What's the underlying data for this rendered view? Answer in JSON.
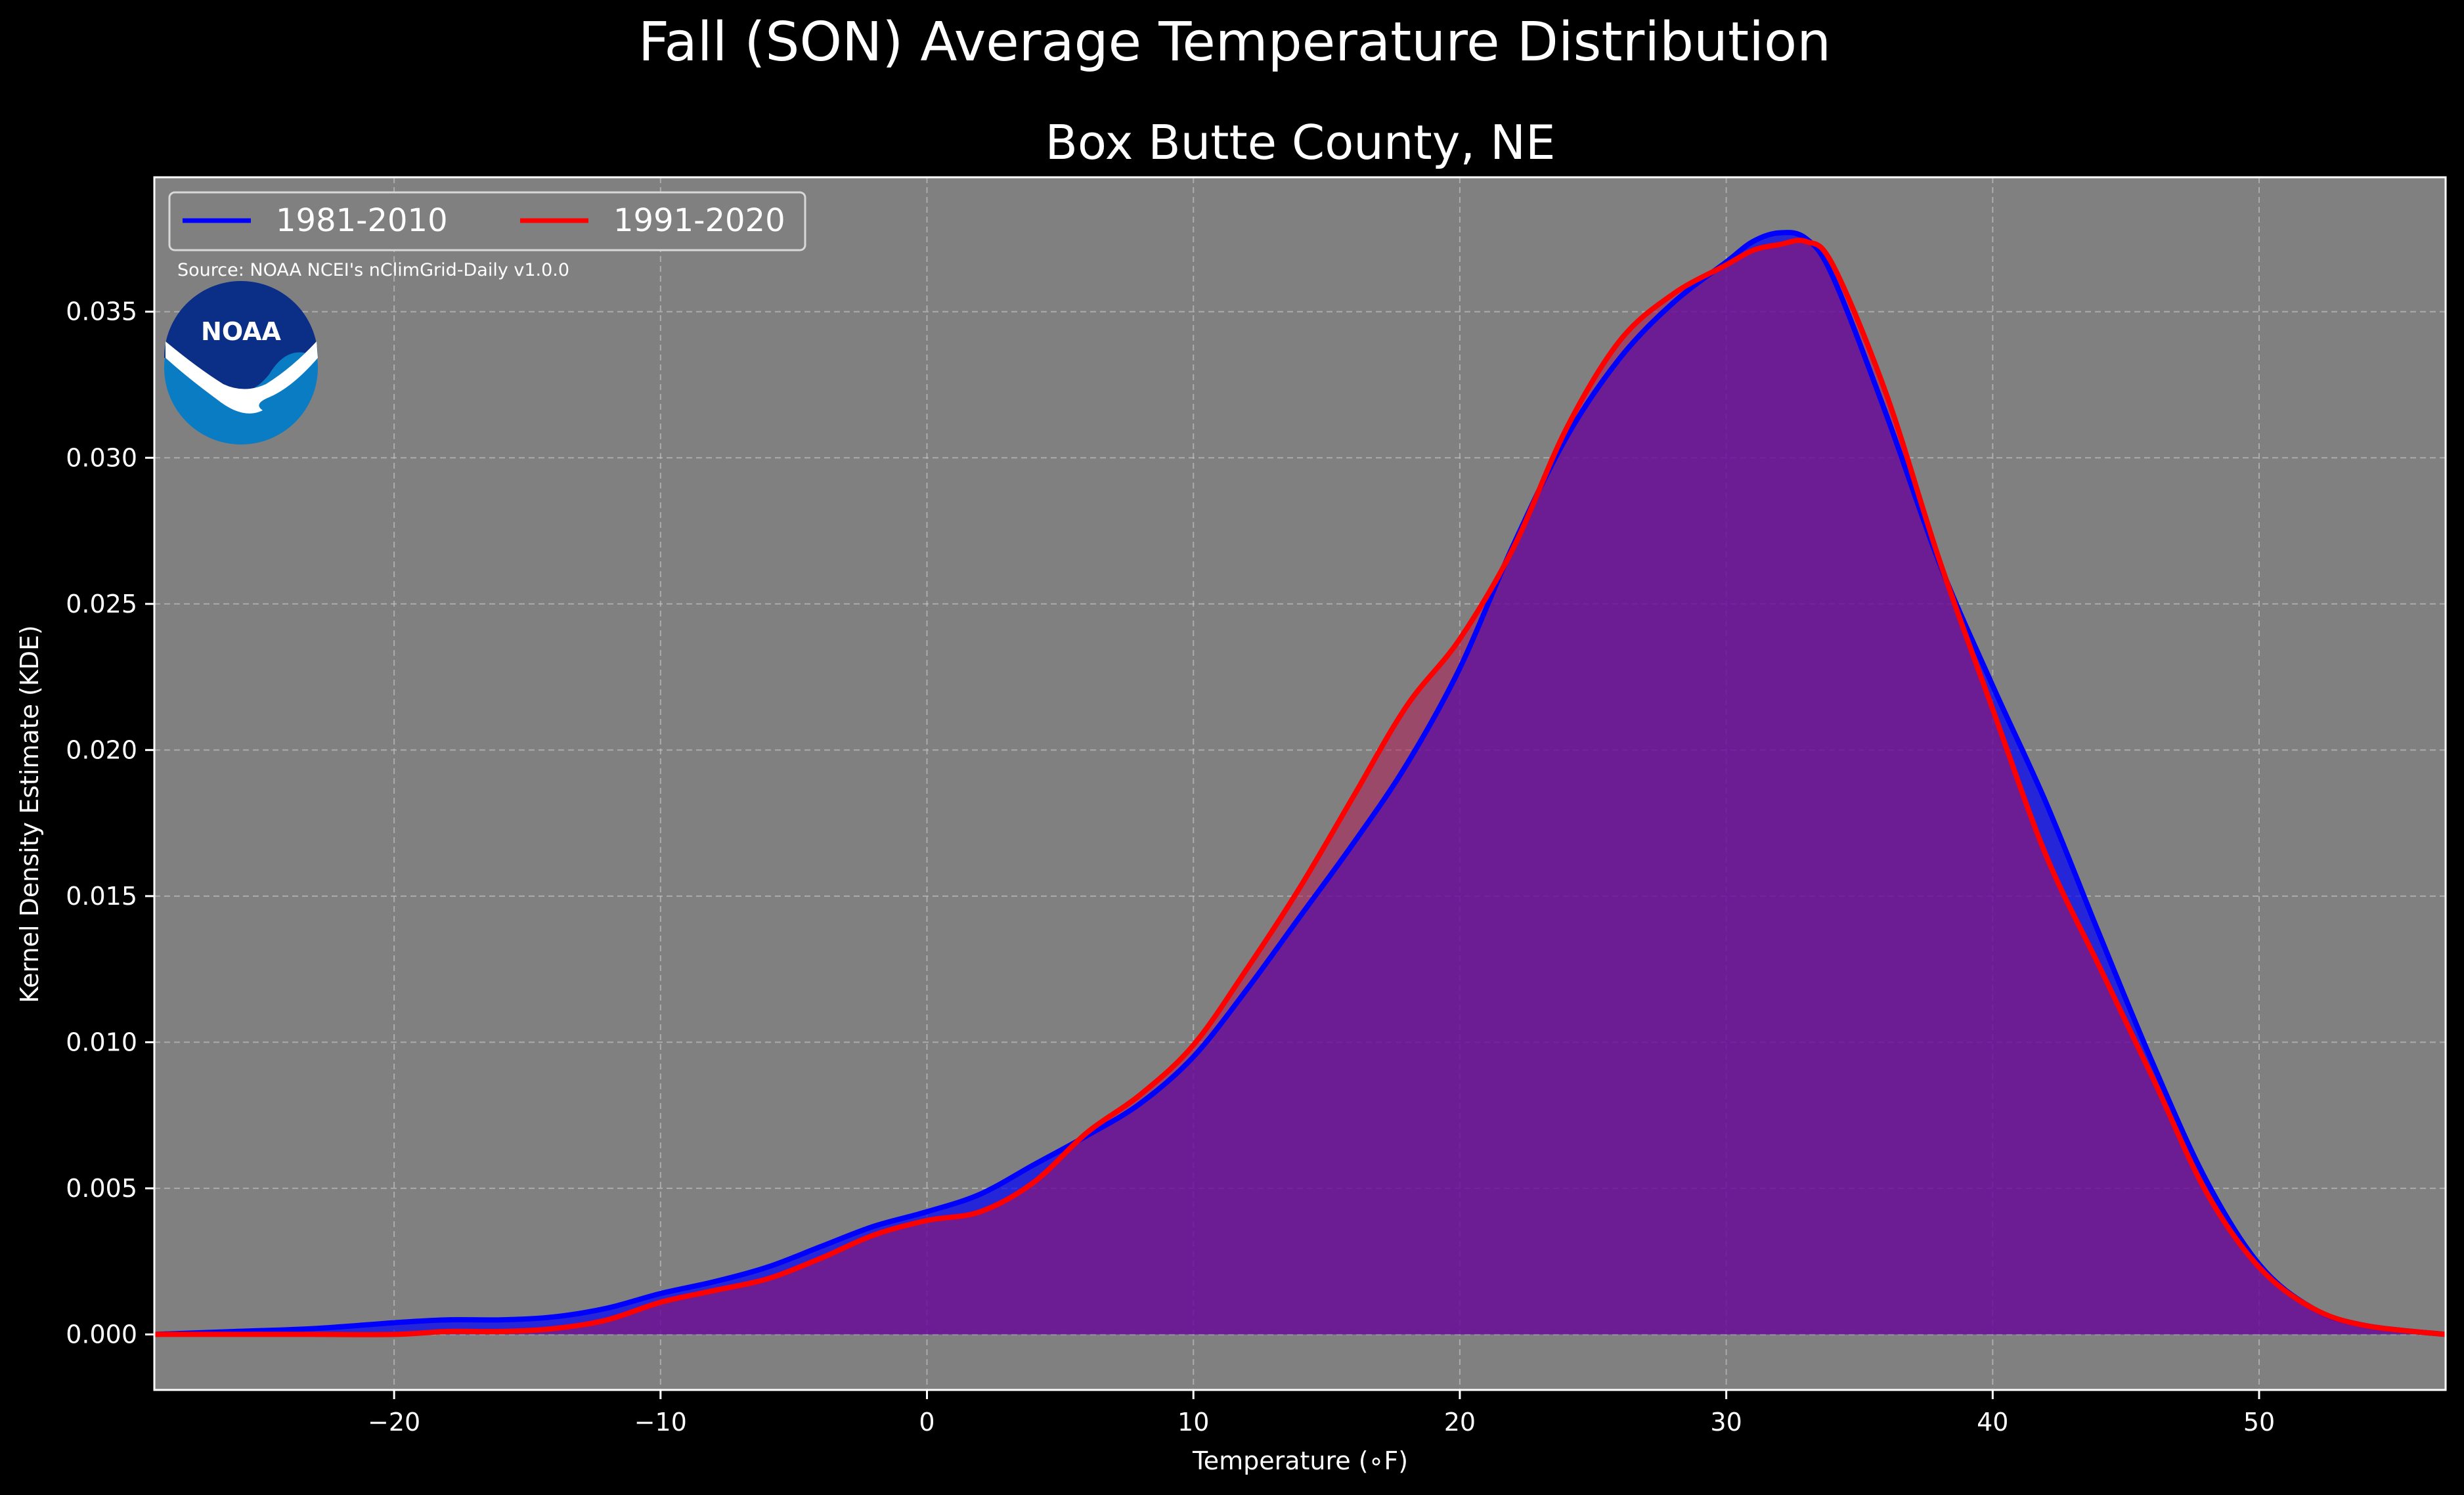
{
  "chart_data": {
    "type": "area",
    "title": "Fall (SON) Average Temperature Distribution",
    "subtitle": "Box Butte County, NE",
    "xlabel": "Temperature (∘F)",
    "ylabel": "Kernel Density Estimate (KDE)",
    "xlim": [
      -29,
      57
    ],
    "ylim": [
      -0.0019,
      0.0396
    ],
    "xticks": [
      "−20",
      "−10",
      "0",
      "10",
      "20",
      "30",
      "40",
      "50"
    ],
    "xtick_values": [
      -20,
      -10,
      0,
      10,
      20,
      30,
      40,
      50
    ],
    "yticks": [
      "0.000",
      "0.005",
      "0.010",
      "0.015",
      "0.020",
      "0.025",
      "0.030",
      "0.035"
    ],
    "ytick_values": [
      0,
      0.005,
      0.01,
      0.015,
      0.02,
      0.025,
      0.03,
      0.035
    ],
    "grid": true,
    "legend_position": "top-left",
    "source": "Source: NOAA NCEI's nClimGrid-Daily v1.0.0",
    "background_color": "#808080",
    "series": [
      {
        "name": "1981-2010",
        "color": "#0000ff",
        "fill": "#0000ff",
        "x": [
          -29,
          -26,
          -23,
          -20,
          -18,
          -16,
          -14,
          -12,
          -10,
          -8,
          -6,
          -4,
          -2,
          0,
          2,
          4,
          6,
          8,
          10,
          12,
          14,
          16,
          18,
          20,
          22,
          24,
          26,
          28,
          30,
          31,
          32,
          33,
          34,
          36,
          38,
          40,
          42,
          44,
          46,
          48,
          50,
          52,
          54,
          57
        ],
        "y": [
          0.0,
          0.0001,
          0.0002,
          0.0004,
          0.0005,
          0.0005,
          0.0006,
          0.0009,
          0.0014,
          0.0018,
          0.0023,
          0.003,
          0.0037,
          0.0042,
          0.0048,
          0.0058,
          0.0068,
          0.0079,
          0.0095,
          0.0118,
          0.0143,
          0.0168,
          0.0195,
          0.0228,
          0.027,
          0.0307,
          0.0334,
          0.0353,
          0.0367,
          0.0374,
          0.0377,
          0.0375,
          0.0362,
          0.0315,
          0.0264,
          0.0222,
          0.0182,
          0.0137,
          0.0093,
          0.0053,
          0.0024,
          0.0009,
          0.0003,
          0.0
        ]
      },
      {
        "name": "1991-2020",
        "color": "#ff0000",
        "fill": "#b41450",
        "x": [
          -29,
          -26,
          -23,
          -20,
          -18,
          -16,
          -14,
          -12,
          -10,
          -8,
          -6,
          -4,
          -2,
          0,
          2,
          4,
          6,
          8,
          10,
          12,
          14,
          16,
          18,
          20,
          22,
          24,
          26,
          28,
          30,
          31,
          32,
          33,
          34,
          36,
          38,
          40,
          42,
          44,
          46,
          48,
          50,
          52,
          54,
          57
        ],
        "y": [
          0.0,
          0.0,
          0.0,
          0.0,
          0.0001,
          0.0001,
          0.0002,
          0.0005,
          0.0011,
          0.0015,
          0.0019,
          0.0026,
          0.0034,
          0.0039,
          0.0042,
          0.0052,
          0.0069,
          0.0082,
          0.0099,
          0.0125,
          0.0153,
          0.0184,
          0.0215,
          0.0238,
          0.0269,
          0.031,
          0.034,
          0.0356,
          0.0366,
          0.0371,
          0.0373,
          0.0374,
          0.0366,
          0.0322,
          0.0265,
          0.0214,
          0.0164,
          0.0126,
          0.0088,
          0.0049,
          0.0023,
          0.0009,
          0.0003,
          0.0
        ]
      }
    ]
  }
}
